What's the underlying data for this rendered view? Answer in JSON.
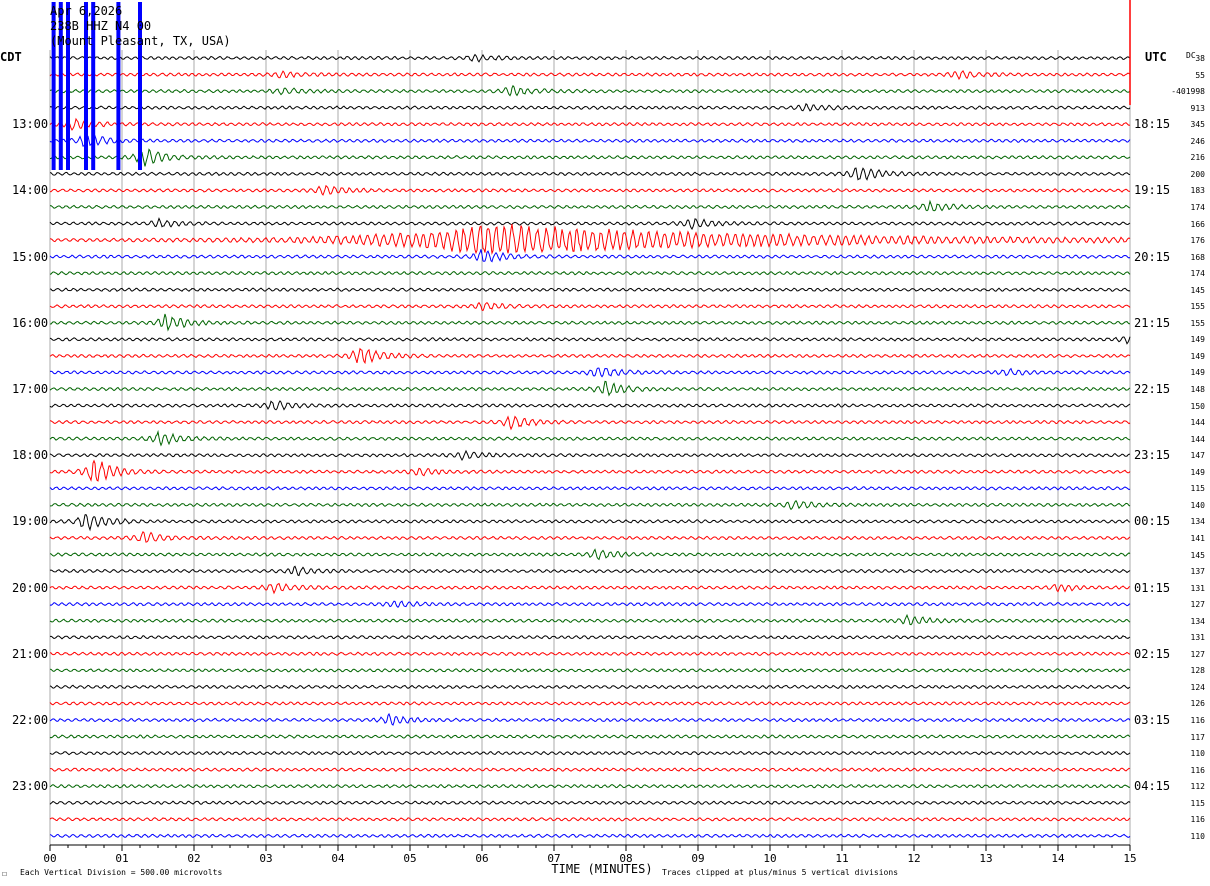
{
  "header": {
    "date": "Apr 6,2026",
    "station": "238B HHZ N4 00",
    "location": "(Mount Pleasant, TX, USA)"
  },
  "left_axis_title": "CDT",
  "right_axis_title": "UTC",
  "dc_label": "DC",
  "footer": {
    "scale_mark": "☐",
    "division_note": "Each Vertical Division =  500.00 microvolts",
    "xlabel": "TIME (MINUTES)",
    "clip_note": "Traces clipped at plus/minus 5 vertical divisions"
  },
  "colors": {
    "black": "#000000",
    "red": "#ff0000",
    "blue": "#0000ff",
    "green": "#006400",
    "grid": "#000000"
  },
  "chart_data": {
    "type": "line",
    "title": "238B HHZ N4 00 (Mount Pleasant, TX, USA)",
    "xlabel": "TIME (MINUTES)",
    "xlim": [
      0,
      15
    ],
    "x_ticks": [
      "00",
      "01",
      "02",
      "03",
      "04",
      "05",
      "06",
      "07",
      "08",
      "09",
      "10",
      "11",
      "12",
      "13",
      "14",
      "15"
    ],
    "trace_count": 48,
    "trace_color_cycle": [
      "black",
      "red",
      "green",
      "black",
      "red",
      "blue",
      "green"
    ],
    "left_hour_labels": [
      {
        "row": 4,
        "label": "13:00"
      },
      {
        "row": 8,
        "label": "14:00"
      },
      {
        "row": 12,
        "label": "15:00"
      },
      {
        "row": 16,
        "label": "16:00"
      },
      {
        "row": 20,
        "label": "17:00"
      },
      {
        "row": 24,
        "label": "18:00"
      },
      {
        "row": 28,
        "label": "19:00"
      },
      {
        "row": 32,
        "label": "20:00"
      },
      {
        "row": 36,
        "label": "21:00"
      },
      {
        "row": 40,
        "label": "22:00"
      },
      {
        "row": 44,
        "label": "23:00"
      }
    ],
    "right_hour_labels": [
      {
        "row": 4,
        "label": "18:15"
      },
      {
        "row": 8,
        "label": "19:15"
      },
      {
        "row": 12,
        "label": "20:15"
      },
      {
        "row": 16,
        "label": "21:15"
      },
      {
        "row": 20,
        "label": "22:15"
      },
      {
        "row": 24,
        "label": "23:15"
      },
      {
        "row": 28,
        "label": "00:15"
      },
      {
        "row": 32,
        "label": "01:15"
      },
      {
        "row": 36,
        "label": "02:15"
      },
      {
        "row": 40,
        "label": "03:15"
      },
      {
        "row": 44,
        "label": "04:15"
      }
    ],
    "dc_offsets": [
      "38",
      "55",
      "-401998",
      "913",
      "345",
      "246",
      "216",
      "200",
      "183",
      "174",
      "166",
      "176",
      "168",
      "174",
      "145",
      "155",
      "155",
      "149",
      "149",
      "149",
      "148",
      "150",
      "144",
      "144",
      "147",
      "149",
      "115",
      "140",
      "134",
      "141",
      "145",
      "137",
      "131",
      "127",
      "134",
      "131",
      "127",
      "128",
      "124",
      "126",
      "116",
      "117",
      "110",
      "116",
      "112",
      "115",
      "116",
      "110"
    ],
    "events": [
      {
        "row": 0,
        "minute": 5.9,
        "amp": 3
      },
      {
        "row": 1,
        "minute": 3.2,
        "amp": 3
      },
      {
        "row": 1,
        "minute": 12.6,
        "amp": 4
      },
      {
        "row": 2,
        "minute": 3.2,
        "amp": 3
      },
      {
        "row": 2,
        "minute": 6.4,
        "amp": 5
      },
      {
        "row": 3,
        "minute": 10.5,
        "amp": 3
      },
      {
        "row": 4,
        "minute": 0.3,
        "amp": 6
      },
      {
        "row": 5,
        "minute": 0.5,
        "amp": 7
      },
      {
        "row": 6,
        "minute": 1.3,
        "amp": 9
      },
      {
        "row": 7,
        "minute": 11.2,
        "amp": 9
      },
      {
        "row": 8,
        "minute": 3.8,
        "amp": 5
      },
      {
        "row": 9,
        "minute": 12.2,
        "amp": 5
      },
      {
        "row": 10,
        "minute": 1.5,
        "amp": 4
      },
      {
        "row": 10,
        "minute": 8.9,
        "amp": 6
      },
      {
        "row": 11,
        "minute": 6.1,
        "amp": 16,
        "width": 3.5
      },
      {
        "row": 12,
        "minute": 6.0,
        "amp": 7
      },
      {
        "row": 15,
        "minute": 6.0,
        "amp": 4
      },
      {
        "row": 16,
        "minute": 1.6,
        "amp": 8
      },
      {
        "row": 17,
        "minute": 15.0,
        "amp": 6
      },
      {
        "row": 18,
        "minute": 4.3,
        "amp": 10
      },
      {
        "row": 19,
        "minute": 7.6,
        "amp": 6
      },
      {
        "row": 19,
        "minute": 13.3,
        "amp": 3
      },
      {
        "row": 20,
        "minute": 7.7,
        "amp": 7
      },
      {
        "row": 21,
        "minute": 3.1,
        "amp": 5
      },
      {
        "row": 22,
        "minute": 6.4,
        "amp": 7
      },
      {
        "row": 23,
        "minute": 1.5,
        "amp": 7
      },
      {
        "row": 24,
        "minute": 5.7,
        "amp": 4
      },
      {
        "row": 25,
        "minute": 0.6,
        "amp": 14
      },
      {
        "row": 25,
        "minute": 5.1,
        "amp": 4
      },
      {
        "row": 27,
        "minute": 10.3,
        "amp": 4
      },
      {
        "row": 28,
        "minute": 0.5,
        "amp": 10
      },
      {
        "row": 29,
        "minute": 1.3,
        "amp": 6
      },
      {
        "row": 30,
        "minute": 7.6,
        "amp": 5
      },
      {
        "row": 31,
        "minute": 3.4,
        "amp": 4
      },
      {
        "row": 32,
        "minute": 3.1,
        "amp": 5
      },
      {
        "row": 32,
        "minute": 14.0,
        "amp": 4
      },
      {
        "row": 33,
        "minute": 4.8,
        "amp": 3
      },
      {
        "row": 34,
        "minute": 11.9,
        "amp": 5
      },
      {
        "row": 40,
        "minute": 4.7,
        "amp": 5
      }
    ]
  }
}
